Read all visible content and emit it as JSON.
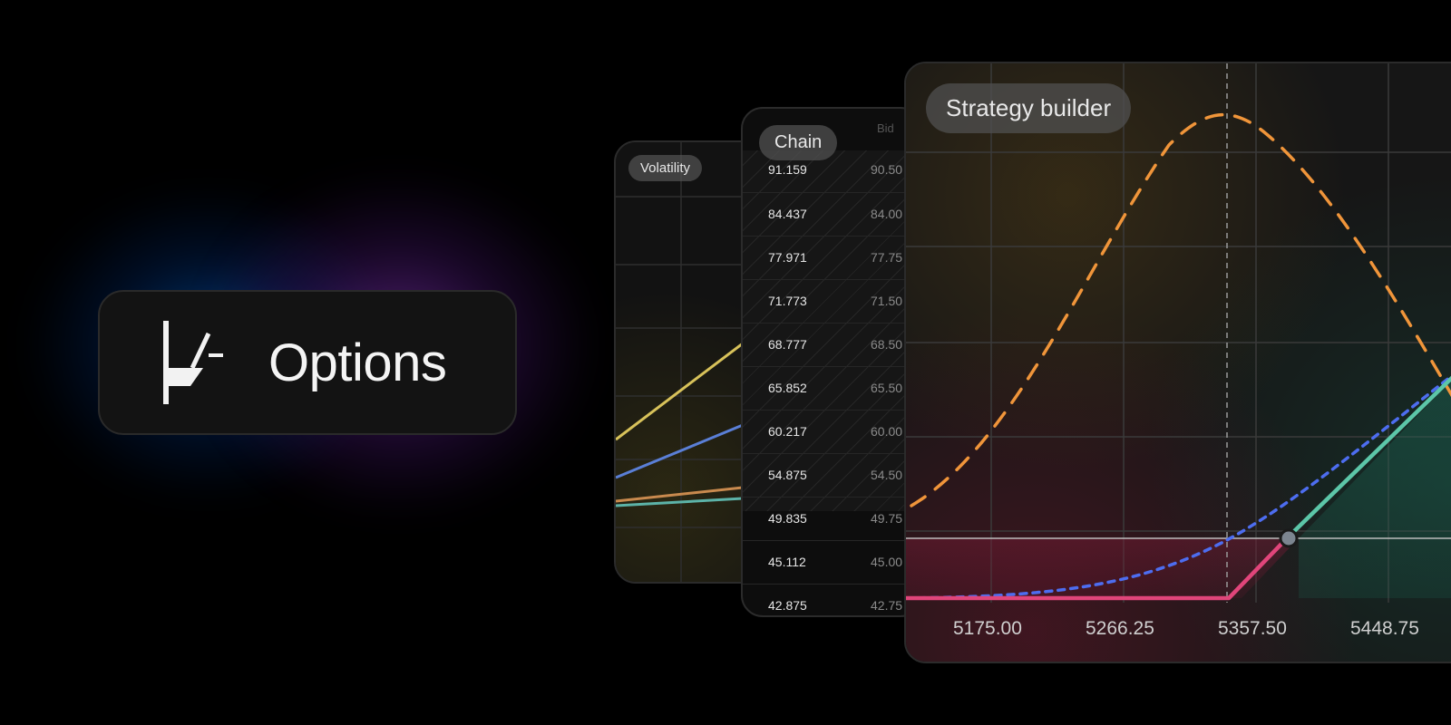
{
  "badge": {
    "label": "Options",
    "icon": "options-logo-icon"
  },
  "volatility_card": {
    "label": "Volatility"
  },
  "chain_card": {
    "label": "Chain",
    "bid_header": "Bid",
    "rows": [
      {
        "value": "91.159",
        "bid": "90.50"
      },
      {
        "value": "84.437",
        "bid": "84.00"
      },
      {
        "value": "77.971",
        "bid": "77.75"
      },
      {
        "value": "71.773",
        "bid": "71.50"
      },
      {
        "value": "68.777",
        "bid": "68.50"
      },
      {
        "value": "65.852",
        "bid": "65.50"
      },
      {
        "value": "60.217",
        "bid": "60.00"
      },
      {
        "value": "54.875",
        "bid": "54.50"
      },
      {
        "value": "49.835",
        "bid": "49.75"
      },
      {
        "value": "45.112",
        "bid": "45.00"
      },
      {
        "value": "42.875",
        "bid": "42.75"
      }
    ]
  },
  "strategy_card": {
    "label": "Strategy builder",
    "x_ticks": [
      "5175.00",
      "5266.25",
      "5357.50",
      "5448.75"
    ]
  },
  "colors": {
    "payoff_loss": "#e0457a",
    "payoff_profit": "#5cc6a8",
    "probability_curve": "#f0953a",
    "expected_curve": "#4d6df0",
    "vol_yellow": "#d8c25a",
    "vol_blue": "#5a7fd6",
    "vol_orange": "#c98a4e",
    "vol_teal": "#5cb3a8"
  }
}
